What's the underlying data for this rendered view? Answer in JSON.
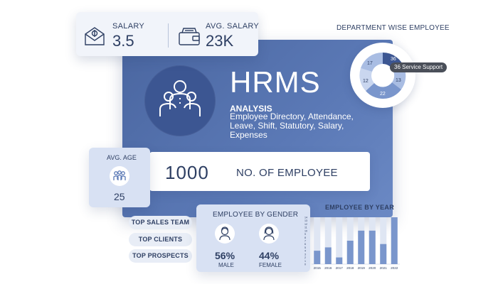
{
  "salary": {
    "label": "SALARY",
    "value": "3.5",
    "icon": "salary-envelope-icon"
  },
  "avg_salary": {
    "label": "AVG. SALARY",
    "value": "23K",
    "icon": "wallet-icon"
  },
  "hero": {
    "title": "HRMS",
    "analysis_heading": "ANALYSIS",
    "analysis_text": "Employee Directory, Attendance, Leave, Shift, Statutory, Salary, Expenses",
    "icon": "team-people-icon"
  },
  "employees": {
    "count": "1000",
    "label": "NO. OF EMPLOYEE"
  },
  "avg_age": {
    "label": "AVG. AGE",
    "value": "25",
    "icon": "group-people-icon"
  },
  "pills": [
    "TOP SALES TEAM",
    "TOP CLIENTS",
    "TOP PROSPECTS"
  ],
  "gender": {
    "title": "EMPLOYEE BY GENDER",
    "male": {
      "pct": "56%",
      "label": "MALE",
      "icon": "male-avatar-icon"
    },
    "female": {
      "pct": "44%",
      "label": "FEMALE",
      "icon": "female-avatar-icon"
    }
  },
  "department": {
    "title": "DEPARTMENT WISE EMPLOYEE",
    "tooltip": "36 Service Support",
    "colors": {
      "dark": "#3c5692",
      "mid": "#7a96cc",
      "light": "#a9bde3",
      "pale": "#c9d6ef"
    }
  },
  "chart_data": {
    "type": "bar",
    "title": "EMPLOYEE BY YEAR",
    "categories": [
      "2015",
      "2016",
      "2017",
      "2018",
      "2019",
      "2020",
      "2021",
      "2022"
    ],
    "series": [
      {
        "values": [
          4,
          5,
          2,
          7,
          10,
          10,
          6,
          14
        ]
      }
    ],
    "background_max": 14,
    "y_ticks": [
      "0",
      "1",
      "2",
      "3",
      "4",
      "5",
      "6",
      "7",
      "8",
      "9",
      "10",
      "11",
      "12",
      "13",
      "14"
    ],
    "ylim": [
      0,
      14
    ],
    "colors": {
      "bar": "#7a96cc",
      "bar_bg": "#dfe6f3"
    }
  }
}
